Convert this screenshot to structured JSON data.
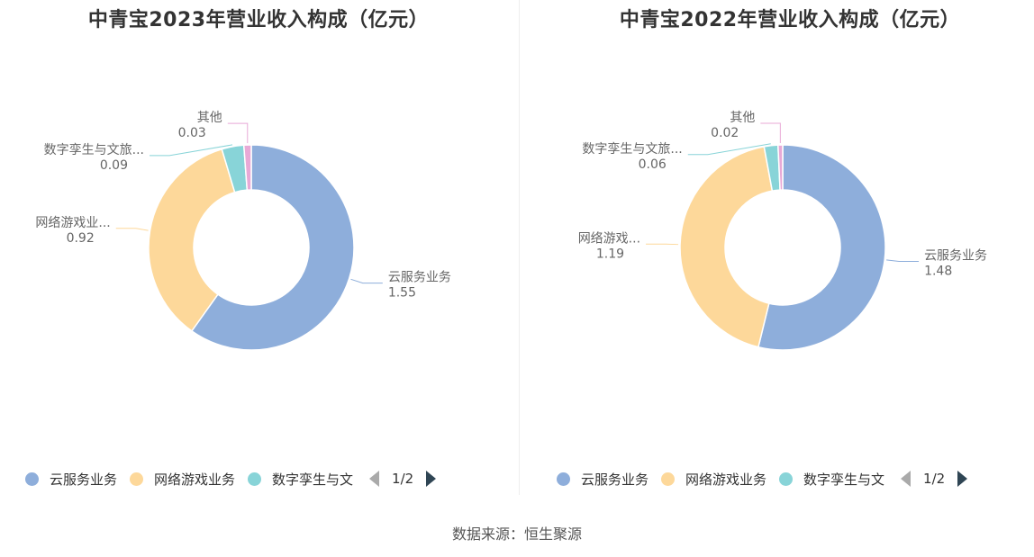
{
  "colors": {
    "cloud": "#8eaedb",
    "game": "#fdd89a",
    "culture": "#88d4d8",
    "other": "#e8a9d6"
  },
  "chart_data": [
    {
      "type": "pie",
      "donut": true,
      "title": "中青宝2023年营业收入构成（亿元）",
      "slices": [
        {
          "name": "云服务业务",
          "label": "云服务业务",
          "value": 1.55,
          "value_label": "1.55"
        },
        {
          "name": "网络游戏业务",
          "label": "网络游戏业...",
          "value": 0.92,
          "value_label": "0.92"
        },
        {
          "name": "数字孪生与文旅",
          "label": "数字孪生与文旅...",
          "value": 0.09,
          "value_label": "0.09"
        },
        {
          "name": "其他",
          "label": "其他",
          "value": 0.03,
          "value_label": "0.03"
        }
      ],
      "legend": {
        "position": "bottom",
        "items": [
          "云服务业务",
          "网络游戏业务",
          "数字孪生与文"
        ],
        "page": "1/2"
      }
    },
    {
      "type": "pie",
      "donut": true,
      "title": "中青宝2022年营业收入构成（亿元）",
      "slices": [
        {
          "name": "云服务业务",
          "label": "云服务业务",
          "value": 1.48,
          "value_label": "1.48"
        },
        {
          "name": "网络游戏业务",
          "label": "网络游戏...",
          "value": 1.19,
          "value_label": "1.19"
        },
        {
          "name": "数字孪生与文旅",
          "label": "数字孪生与文旅...",
          "value": 0.06,
          "value_label": "0.06"
        },
        {
          "name": "其他",
          "label": "其他",
          "value": 0.02,
          "value_label": "0.02"
        }
      ],
      "legend": {
        "position": "bottom",
        "items": [
          "云服务业务",
          "网络游戏业务",
          "数字孪生与文"
        ],
        "page": "1/2"
      }
    }
  ],
  "source": "数据来源：恒生聚源"
}
